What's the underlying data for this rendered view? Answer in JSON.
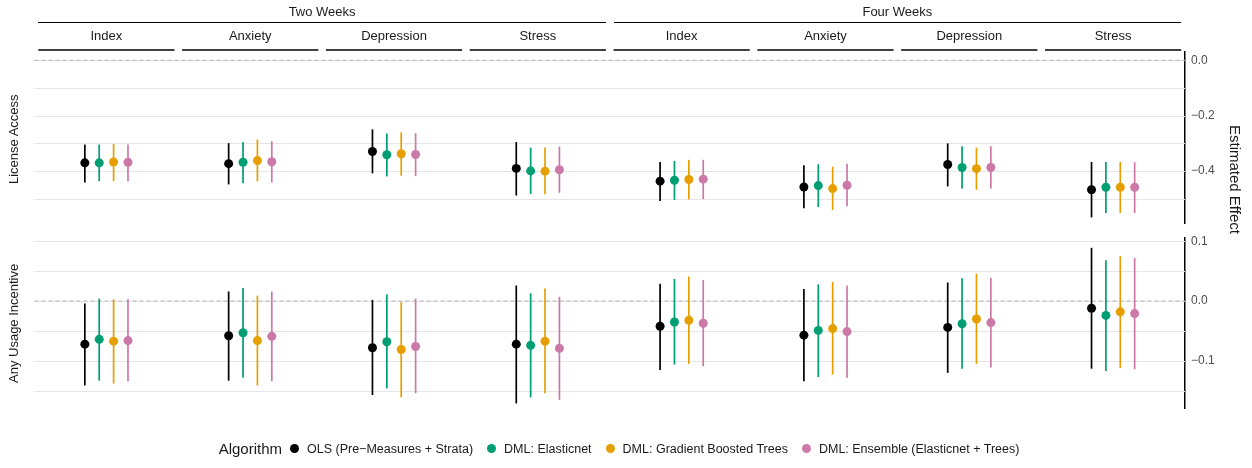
{
  "chart_data": [
    {
      "type": "scatter",
      "title": "License Access",
      "ylabel": "Estimated Effect",
      "annotations": [
        "Two Weeks",
        "Four Weeks"
      ],
      "legend": "bottom",
      "legend_title": "Algorithm",
      "categories": [
        "Index",
        "Anxiety",
        "Depression",
        "Stress",
        "Index",
        "Anxiety",
        "Depression",
        "Stress"
      ],
      "grid": "y",
      "marker": "circle",
      "ylim": [
        -0.59,
        0.03
      ],
      "yticks": [
        {
          "value": 0,
          "label": "0.0"
        },
        {
          "value": -0.1,
          "label": null
        },
        {
          "value": -0.2,
          "label": "−0.2"
        },
        {
          "value": -0.3,
          "label": null
        },
        {
          "value": -0.4,
          "label": "−0.4"
        },
        {
          "value": -0.5,
          "label": null
        }
      ],
      "ref_lines": [
        {
          "axis": "y",
          "value": 0,
          "color": "#b3b3b3",
          "line_style": "dashed"
        }
      ],
      "series": [
        {
          "name": "OLS (Pre−Measures + Strata)",
          "color": "#000000",
          "values": [
            -0.37,
            -0.373,
            -0.329,
            -0.39,
            -0.436,
            -0.457,
            -0.376,
            -0.467
          ],
          "errors": [
            [
              -0.441,
              -0.304
            ],
            [
              -0.448,
              -0.299
            ],
            [
              -0.408,
              -0.249
            ],
            [
              -0.488,
              -0.295
            ],
            [
              -0.508,
              -0.367
            ],
            [
              -0.534,
              -0.379
            ],
            [
              -0.455,
              -0.3
            ],
            [
              -0.567,
              -0.367
            ]
          ]
        },
        {
          "name": "DML: Elasticnet",
          "color": "#009e73",
          "values": [
            -0.37,
            -0.368,
            -0.341,
            -0.399,
            -0.433,
            -0.452,
            -0.387,
            -0.458
          ],
          "errors": [
            [
              -0.436,
              -0.304
            ],
            [
              -0.444,
              -0.295
            ],
            [
              -0.419,
              -0.264
            ],
            [
              -0.482,
              -0.315
            ],
            [
              -0.504,
              -0.363
            ],
            [
              -0.53,
              -0.375
            ],
            [
              -0.463,
              -0.31
            ],
            [
              -0.551,
              -0.367
            ]
          ]
        },
        {
          "name": "DML: Gradient Boosted Trees",
          "color": "#e69f00",
          "values": [
            -0.367,
            -0.362,
            -0.337,
            -0.4,
            -0.43,
            -0.463,
            -0.391,
            -0.458
          ],
          "errors": [
            [
              -0.436,
              -0.302
            ],
            [
              -0.437,
              -0.286
            ],
            [
              -0.416,
              -0.26
            ],
            [
              -0.483,
              -0.315
            ],
            [
              -0.502,
              -0.359
            ],
            [
              -0.54,
              -0.384
            ],
            [
              -0.467,
              -0.315
            ],
            [
              -0.551,
              -0.367
            ]
          ]
        },
        {
          "name": "DML: Ensemble (Elasticnet + Trees)",
          "color": "#cc79a7",
          "values": [
            -0.368,
            -0.366,
            -0.34,
            -0.395,
            -0.429,
            -0.451,
            -0.387,
            -0.458
          ],
          "errors": [
            [
              -0.436,
              -0.304
            ],
            [
              -0.441,
              -0.292
            ],
            [
              -0.418,
              -0.263
            ],
            [
              -0.478,
              -0.311
            ],
            [
              -0.501,
              -0.359
            ],
            [
              -0.527,
              -0.373
            ],
            [
              -0.463,
              -0.31
            ],
            [
              -0.551,
              -0.368
            ]
          ]
        }
      ]
    },
    {
      "type": "scatter",
      "title": "Any Usage Incentive",
      "categories": [
        null,
        null,
        null,
        null,
        null,
        null,
        null,
        null
      ],
      "tick_labels": "y",
      "grid": "y",
      "marker": "circle",
      "ylim": [
        -0.18,
        0.105
      ],
      "yticks": [
        0.1,
        {
          "value": 0.05,
          "label": null
        },
        {
          "value": 0,
          "label": "0.0"
        },
        {
          "value": -0.05,
          "label": null
        },
        {
          "value": -0.1,
          "label": "−0.1"
        },
        {
          "value": -0.15,
          "label": null
        }
      ],
      "ref_lines": [
        {
          "axis": "y",
          "value": 0,
          "color": "#b3b3b3",
          "line_style": "dashed"
        }
      ],
      "series": [
        {
          "color": "#000000",
          "values": [
            -0.072,
            -0.058,
            -0.078,
            -0.072,
            -0.042,
            -0.057,
            -0.044,
            -0.012
          ],
          "errors": [
            [
              -0.141,
              -0.004
            ],
            [
              -0.133,
              0.016
            ],
            [
              -0.157,
              0.002
            ],
            [
              -0.171,
              0.026
            ],
            [
              -0.115,
              0.029
            ],
            [
              -0.134,
              0.02
            ],
            [
              -0.12,
              0.031
            ],
            [
              -0.113,
              0.089
            ]
          ]
        },
        {
          "color": "#009e73",
          "values": [
            -0.064,
            -0.053,
            -0.068,
            -0.074,
            -0.035,
            -0.049,
            -0.038,
            -0.024
          ],
          "errors": [
            [
              -0.133,
              0.004
            ],
            [
              -0.128,
              0.022
            ],
            [
              -0.146,
              0.011
            ],
            [
              -0.161,
              0.013
            ],
            [
              -0.106,
              0.037
            ],
            [
              -0.127,
              0.028
            ],
            [
              -0.113,
              0.038
            ],
            [
              -0.117,
              0.068
            ]
          ]
        },
        {
          "color": "#e69f00",
          "values": [
            -0.067,
            -0.066,
            -0.081,
            -0.067,
            -0.032,
            -0.046,
            -0.03,
            -0.018
          ],
          "errors": [
            [
              -0.138,
              0.003
            ],
            [
              -0.141,
              0.009
            ],
            [
              -0.161,
              -0.002
            ],
            [
              -0.154,
              0.021
            ],
            [
              -0.105,
              0.041
            ],
            [
              -0.123,
              0.032
            ],
            [
              -0.105,
              0.046
            ],
            [
              -0.112,
              0.075
            ]
          ]
        },
        {
          "color": "#cc79a7",
          "values": [
            -0.066,
            -0.059,
            -0.076,
            -0.079,
            -0.037,
            -0.051,
            -0.036,
            -0.021
          ],
          "errors": [
            [
              -0.134,
              0.003
            ],
            [
              -0.134,
              0.016
            ],
            [
              -0.154,
              0.004
            ],
            [
              -0.165,
              0.007
            ],
            [
              -0.109,
              0.035
            ],
            [
              -0.128,
              0.026
            ],
            [
              -0.111,
              0.039
            ],
            [
              -0.114,
              0.072
            ]
          ]
        }
      ]
    }
  ]
}
